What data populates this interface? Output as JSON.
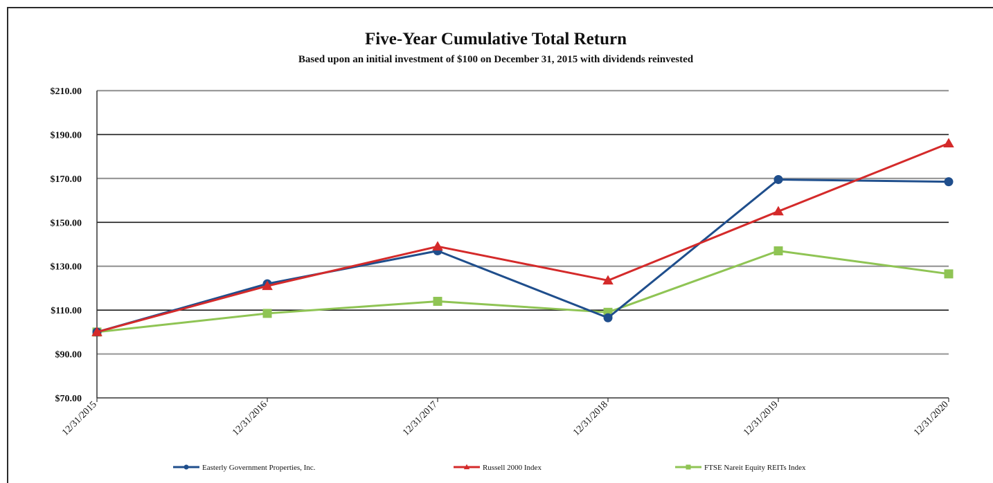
{
  "chart_data": {
    "type": "line",
    "title": "Five-Year Cumulative Total Return",
    "subtitle": "Based upon an initial investment of $100 on December 31, 2015 with dividends reinvested",
    "xlabel": "",
    "ylabel": "",
    "categories": [
      "12/31/2015",
      "12/31/2016",
      "12/31/2017",
      "12/31/2018",
      "12/31/2019",
      "12/31/2020"
    ],
    "ylim": [
      70,
      210
    ],
    "yticks": [
      70,
      90,
      110,
      130,
      150,
      170,
      190,
      210
    ],
    "ytick_labels": [
      "$70.00",
      "$90.00",
      "$110.00",
      "$130.00",
      "$150.00",
      "$170.00",
      "$190.00",
      "$210.00"
    ],
    "grid": true,
    "legend_position": "bottom",
    "series": [
      {
        "name": "Easterly Government Properties, Inc.",
        "color": "#1f4e8c",
        "marker": "circle",
        "values": [
          100.0,
          122.0,
          137.0,
          106.5,
          169.5,
          168.5
        ]
      },
      {
        "name": "Russell 2000 Index",
        "color": "#d42a2a",
        "marker": "triangle",
        "values": [
          100.0,
          121.0,
          139.0,
          123.5,
          155.0,
          186.0
        ]
      },
      {
        "name": "FTSE Nareit Equity REITs Index",
        "color": "#8fc454",
        "marker": "square",
        "values": [
          100.0,
          108.5,
          114.0,
          109.0,
          137.0,
          126.5
        ]
      }
    ]
  }
}
